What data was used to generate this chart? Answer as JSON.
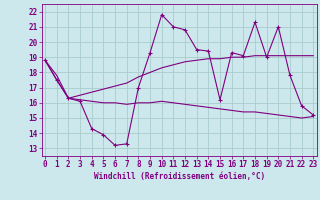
{
  "bg_color": "#cce8ec",
  "grid_color": "#aacccc",
  "line_color": "#800080",
  "xlabel": "Windchill (Refroidissement éolien,°C)",
  "yticks": [
    13,
    14,
    15,
    16,
    17,
    18,
    19,
    20,
    21,
    22
  ],
  "xticks": [
    0,
    1,
    2,
    3,
    4,
    5,
    6,
    7,
    8,
    9,
    10,
    11,
    12,
    13,
    14,
    15,
    16,
    17,
    18,
    19,
    20,
    21,
    22,
    23
  ],
  "xlim": [
    -0.3,
    23.3
  ],
  "ylim": [
    12.5,
    22.5
  ],
  "line1_x": [
    0,
    1,
    2,
    3,
    4,
    5,
    6,
    7,
    8,
    9,
    10,
    11,
    12,
    13,
    14,
    15,
    16,
    17,
    18,
    19,
    20,
    21,
    22,
    23
  ],
  "line1_y": [
    18.8,
    17.5,
    16.3,
    16.1,
    14.3,
    13.9,
    13.2,
    13.3,
    17.0,
    19.3,
    21.8,
    21.0,
    20.8,
    19.5,
    19.4,
    16.2,
    19.3,
    19.1,
    21.3,
    19.0,
    21.0,
    17.8,
    15.8,
    15.2
  ],
  "line2_x": [
    0,
    1,
    2,
    3,
    4,
    5,
    6,
    7,
    8,
    9,
    10,
    11,
    12,
    13,
    14,
    15,
    16,
    17,
    18,
    19,
    20,
    21,
    22,
    23
  ],
  "line2_y": [
    18.8,
    17.5,
    16.3,
    16.2,
    16.1,
    16.0,
    16.0,
    15.9,
    16.0,
    16.0,
    16.1,
    16.0,
    15.9,
    15.8,
    15.7,
    15.6,
    15.5,
    15.4,
    15.4,
    15.3,
    15.2,
    15.1,
    15.0,
    15.1
  ],
  "line3_x": [
    0,
    1,
    2,
    3,
    4,
    5,
    6,
    7,
    8,
    9,
    10,
    11,
    12,
    13,
    14,
    15,
    16,
    17,
    18,
    19,
    20,
    21,
    22,
    23
  ],
  "line3_y": [
    18.8,
    17.8,
    16.3,
    16.5,
    16.7,
    16.9,
    17.1,
    17.3,
    17.7,
    18.0,
    18.3,
    18.5,
    18.7,
    18.8,
    18.9,
    18.9,
    19.0,
    19.0,
    19.1,
    19.1,
    19.1,
    19.1,
    19.1,
    19.1
  ],
  "tick_fontsize": 5.5,
  "xlabel_fontsize": 5.5
}
